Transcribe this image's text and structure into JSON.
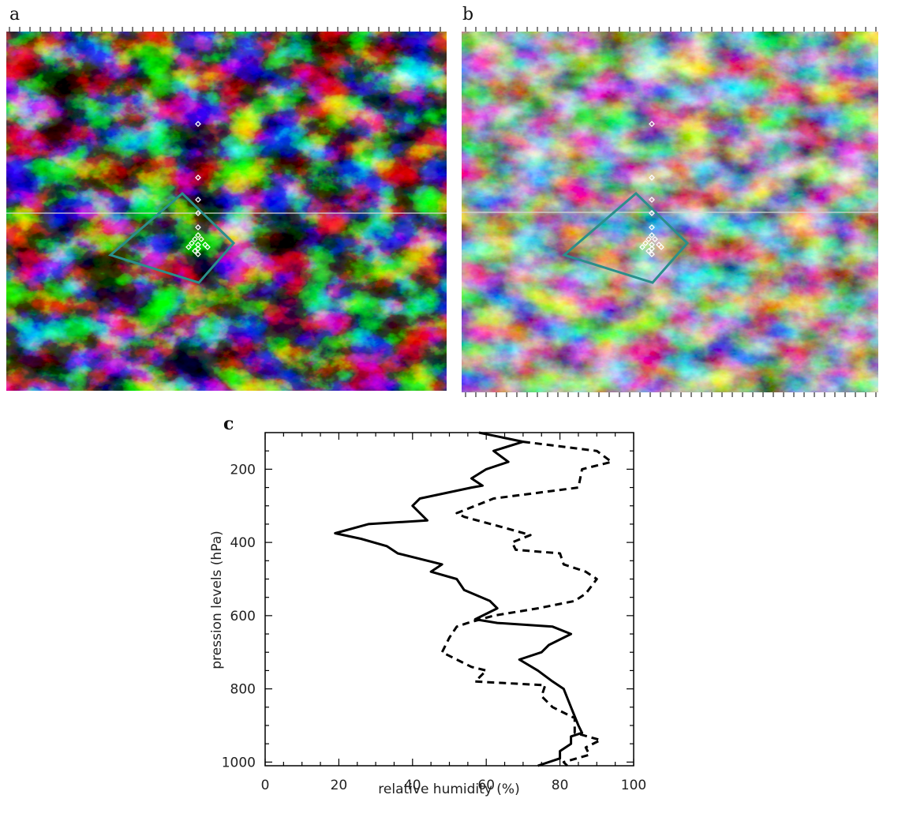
{
  "panels": {
    "a": {
      "letter": "a"
    },
    "b": {
      "letter": "b"
    },
    "c": {
      "letter": "c"
    }
  },
  "colors": {
    "region_outline": "#2a8f8a",
    "station_marker": "#ffffff",
    "line": "#000000"
  },
  "chart_data": {
    "type": "line",
    "xlabel": "relative humidity (%)",
    "ylabel": "pression levels (hPa)",
    "xlim": [
      0,
      100
    ],
    "ylim": [
      1010,
      100
    ],
    "xticks": [
      0,
      20,
      40,
      60,
      80,
      100
    ],
    "yticks": [
      200,
      400,
      600,
      800,
      1000
    ],
    "grid": false,
    "series": [
      {
        "style": "solid",
        "points": [
          [
            58,
            100
          ],
          [
            70,
            125
          ],
          [
            62,
            150
          ],
          [
            66,
            180
          ],
          [
            60,
            200
          ],
          [
            56,
            225
          ],
          [
            59,
            245
          ],
          [
            56,
            250
          ],
          [
            42,
            280
          ],
          [
            40,
            300
          ],
          [
            44,
            340
          ],
          [
            28,
            350
          ],
          [
            19,
            375
          ],
          [
            26,
            390
          ],
          [
            33,
            410
          ],
          [
            36,
            430
          ],
          [
            48,
            460
          ],
          [
            45,
            480
          ],
          [
            52,
            500
          ],
          [
            54,
            530
          ],
          [
            61,
            560
          ],
          [
            63,
            580
          ],
          [
            59,
            600
          ],
          [
            57,
            610
          ],
          [
            63,
            620
          ],
          [
            78,
            630
          ],
          [
            83,
            650
          ],
          [
            77,
            680
          ],
          [
            75,
            700
          ],
          [
            69,
            720
          ],
          [
            74,
            750
          ],
          [
            78,
            780
          ],
          [
            81,
            800
          ],
          [
            83,
            850
          ],
          [
            85,
            900
          ],
          [
            86,
            920
          ],
          [
            83,
            930
          ],
          [
            83,
            950
          ],
          [
            80,
            970
          ],
          [
            80,
            990
          ],
          [
            74,
            1010
          ]
        ]
      },
      {
        "style": "dashed",
        "points": [
          [
            70,
            125
          ],
          [
            90,
            150
          ],
          [
            94,
            180
          ],
          [
            86,
            200
          ],
          [
            85,
            250
          ],
          [
            62,
            280
          ],
          [
            52,
            320
          ],
          [
            54,
            330
          ],
          [
            65,
            360
          ],
          [
            72,
            380
          ],
          [
            67,
            400
          ],
          [
            68,
            420
          ],
          [
            80,
            430
          ],
          [
            81,
            460
          ],
          [
            87,
            480
          ],
          [
            90,
            500
          ],
          [
            87,
            540
          ],
          [
            84,
            560
          ],
          [
            74,
            580
          ],
          [
            62,
            600
          ],
          [
            55,
            620
          ],
          [
            52,
            630
          ],
          [
            50,
            660
          ],
          [
            48,
            700
          ],
          [
            56,
            740
          ],
          [
            60,
            750
          ],
          [
            57,
            780
          ],
          [
            76,
            790
          ],
          [
            75,
            820
          ],
          [
            78,
            850
          ],
          [
            84,
            880
          ],
          [
            84,
            920
          ],
          [
            91,
            940
          ],
          [
            87,
            960
          ],
          [
            88,
            980
          ],
          [
            81,
            1000
          ],
          [
            82,
            1010
          ]
        ]
      }
    ]
  }
}
